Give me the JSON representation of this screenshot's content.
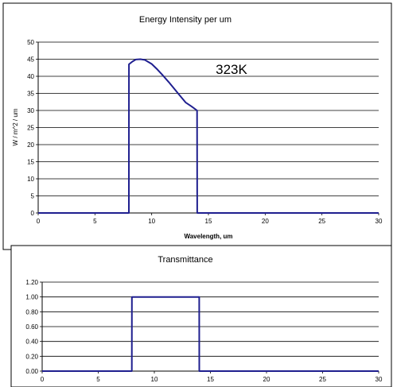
{
  "chart_data": [
    {
      "type": "line",
      "title": "Energy Intensity per um",
      "xlabel": "Wavelength, um",
      "ylabel": "W / m^2 / um",
      "xlim": [
        0,
        30
      ],
      "ylim": [
        0,
        50
      ],
      "x_ticks": [
        0,
        5,
        10,
        15,
        20,
        25,
        30
      ],
      "y_ticks": [
        0,
        5,
        10,
        15,
        20,
        25,
        30,
        35,
        40,
        45,
        50
      ],
      "grid": "horizontal",
      "annotation": "323K",
      "series": [
        {
          "x": [
            0,
            7.99,
            8.0,
            8.3,
            8.6,
            9.0,
            9.4,
            10.0,
            10.5,
            11.0,
            11.5,
            12.0,
            12.5,
            13.0,
            13.5,
            14.0,
            14.01,
            30
          ],
          "y": [
            0,
            0,
            43.5,
            44.3,
            44.9,
            45.0,
            44.8,
            43.6,
            42.0,
            40.2,
            38.3,
            36.3,
            34.3,
            32.3,
            31.2,
            30.0,
            0,
            0
          ]
        }
      ]
    },
    {
      "type": "line",
      "title": "Transmittance",
      "xlim": [
        0,
        30
      ],
      "ylim": [
        0,
        1.2
      ],
      "x_ticks": [
        0,
        5,
        10,
        15,
        20,
        25,
        30
      ],
      "y_ticks": [
        "0.00",
        "0.20",
        "0.40",
        "0.60",
        "0.80",
        "1.00",
        "1.20"
      ],
      "grid": "horizontal",
      "series": [
        {
          "x": [
            0,
            7.99,
            8.0,
            14.0,
            14.01,
            30
          ],
          "y": [
            0,
            0,
            1.0,
            1.0,
            0,
            0
          ]
        }
      ]
    }
  ]
}
